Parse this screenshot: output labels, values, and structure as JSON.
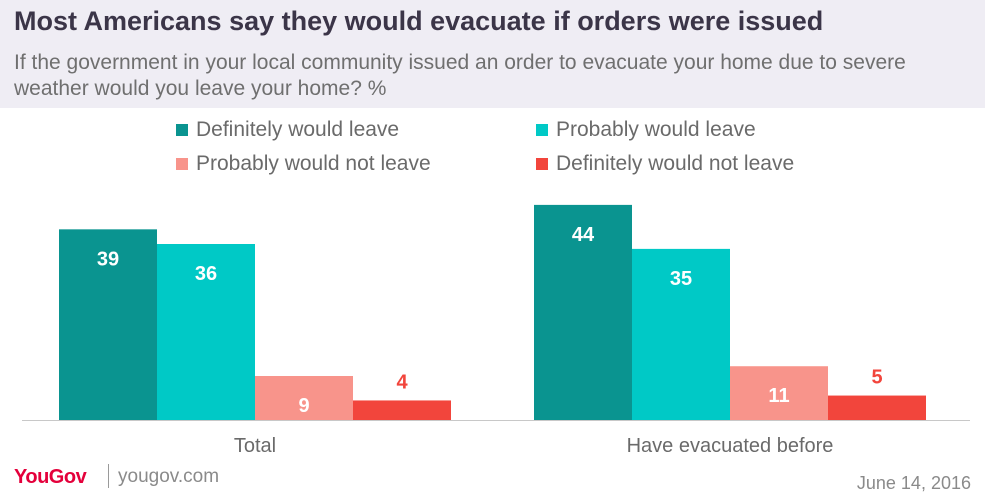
{
  "header": {
    "title": "Most Americans say they would evacuate if orders were issued",
    "subtitle": "If the government in your local community issued an order to evacuate your home due to severe weather would you leave your home? %"
  },
  "chart_data": {
    "type": "bar",
    "categories": [
      "Total",
      "Have evacuated before"
    ],
    "series": [
      {
        "name": "Definitely would leave",
        "color": "#0a9490",
        "label_color": "#ffffff",
        "values": [
          39,
          44
        ]
      },
      {
        "name": "Probably would leave",
        "color": "#00c9c6",
        "label_color": "#ffffff",
        "values": [
          36,
          35
        ]
      },
      {
        "name": "Probably would not leave",
        "color": "#f8948b",
        "label_color": "#ffffff",
        "values": [
          9,
          11
        ]
      },
      {
        "name": "Definitely would not leave",
        "color": "#f2453c",
        "label_color": "#f2453c",
        "values": [
          4,
          5
        ]
      }
    ],
    "ylim": [
      0,
      45
    ],
    "grid": false,
    "legend": "top"
  },
  "footer": {
    "logo_you": "You",
    "logo_gov": "Gov",
    "site": "yougov.com",
    "date": "June 14, 2016"
  }
}
